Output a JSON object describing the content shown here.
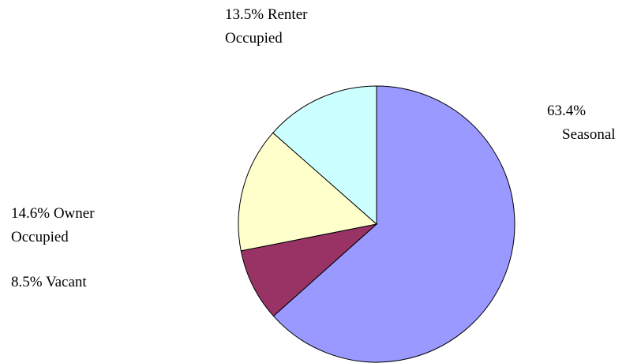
{
  "chart_data": {
    "type": "pie",
    "categories": [
      "Seasonal",
      "Vacant",
      "Owner Occupied",
      "Renter Occupied"
    ],
    "values": [
      63.4,
      8.5,
      14.6,
      13.5
    ],
    "value_labels": [
      "63.4%",
      "8.5%",
      "14.6%",
      "13.5%"
    ],
    "colors": [
      "#9999ff",
      "#993366",
      "#ffffcc",
      "#ccffff"
    ]
  }
}
